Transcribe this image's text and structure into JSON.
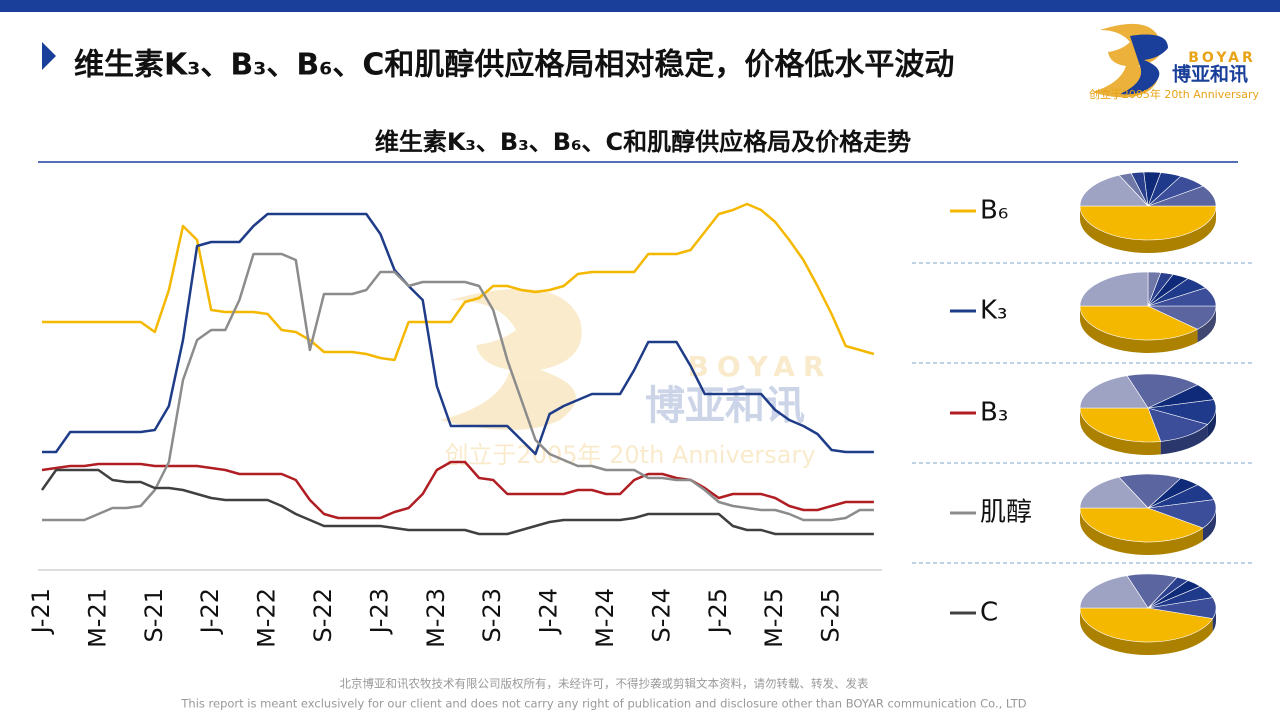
{
  "header": {
    "title": "维生素K₃、B₃、B₆、C和肌醇供应格局相对稳定，价格低水平波动"
  },
  "logo": {
    "brand": "BOYAR",
    "name": "博亚和讯",
    "tagline": "创立于2005年 20th Anniversary"
  },
  "chart_data": [
    {
      "type": "line",
      "title": "维生素K₃、B₃、B₆、C和肌醇供应格局及价格走势",
      "categories": [
        "J-21",
        null,
        null,
        null,
        "M-21",
        null,
        null,
        null,
        "S-21",
        null,
        null,
        null,
        "J-22",
        null,
        null,
        null,
        "M-22",
        null,
        null,
        null,
        "S-22",
        null,
        null,
        null,
        "J-23",
        null,
        null,
        null,
        "M-23",
        null,
        null,
        null,
        "S-23",
        null,
        null,
        null,
        "J-24",
        null,
        null,
        null,
        "M-24",
        null,
        null,
        null,
        "S-24",
        null,
        null,
        null,
        "J-25",
        null,
        null,
        null,
        "M-25",
        null,
        null,
        null,
        "S-25",
        null,
        null,
        null
      ],
      "ylim": [
        0,
        100
      ],
      "series": [
        {
          "name": "B₆",
          "color": "#f5b800",
          "values": [
            62,
            62,
            62,
            62,
            62,
            62,
            62,
            62,
            59.5,
            70,
            86,
            82.5,
            65,
            64.5,
            64.5,
            64.5,
            64,
            60,
            59.5,
            57.5,
            54.5,
            54.5,
            54.5,
            54,
            53,
            52.5,
            62,
            62,
            62,
            62,
            67,
            68,
            71,
            71,
            70,
            69.5,
            70,
            71,
            74,
            74.5,
            74.5,
            74.5,
            74.5,
            79,
            79,
            79,
            80,
            84.5,
            89,
            90,
            91.5,
            90,
            87,
            82.5,
            77.5,
            71,
            64,
            56,
            55,
            54
          ]
        },
        {
          "name": "K₃",
          "color": "#1f3c88",
          "values": [
            29.5,
            29.5,
            34.5,
            34.5,
            34.5,
            34.5,
            34.5,
            34.5,
            35,
            41,
            57.5,
            81,
            82,
            82,
            82,
            86,
            89,
            89,
            89,
            89,
            89,
            89,
            89,
            89,
            84,
            75,
            71,
            67.5,
            46,
            36,
            36,
            36,
            36,
            36,
            32.5,
            29,
            39,
            41,
            42.5,
            44,
            44,
            44,
            50,
            57,
            57,
            57,
            51,
            44,
            44,
            44,
            44,
            44,
            40,
            37.5,
            36,
            34,
            30,
            29.5,
            29.5,
            29.5
          ]
        },
        {
          "name": "B₃",
          "color": "#b01e23",
          "values": [
            25,
            25.5,
            26,
            26,
            26.5,
            26.5,
            26.5,
            26.5,
            26,
            26,
            26,
            26,
            25.5,
            25,
            24,
            24,
            24,
            24,
            22.5,
            17.5,
            14,
            13,
            13,
            13,
            13,
            14.5,
            15.5,
            19,
            25,
            27,
            27,
            23,
            22.5,
            19,
            19,
            19,
            19,
            19,
            20,
            20,
            19,
            19,
            22.5,
            24,
            24,
            23,
            22.5,
            20.5,
            18,
            19,
            19,
            19,
            18,
            16,
            15,
            15,
            16,
            17,
            17,
            17
          ]
        },
        {
          "name": "肌醇",
          "color": "#8c8c8c",
          "values": [
            12.5,
            12.5,
            12.5,
            12.5,
            14,
            15.5,
            15.5,
            16,
            20,
            27,
            47.5,
            57.5,
            60,
            60,
            67.5,
            79,
            79,
            79,
            77.5,
            55,
            69,
            69,
            69,
            70,
            74.5,
            74.5,
            71,
            72,
            72,
            72,
            72,
            71,
            65,
            52.5,
            42.5,
            32.5,
            29,
            27.5,
            26,
            26,
            25,
            25,
            25,
            23,
            23,
            22.5,
            22.5,
            20,
            17,
            16,
            15.5,
            15,
            15,
            14,
            12.5,
            12.5,
            12.5,
            13,
            15,
            15
          ]
        },
        {
          "name": "C",
          "color": "#404040",
          "values": [
            20,
            25,
            25,
            25,
            25,
            22.5,
            22,
            22,
            20.5,
            20.5,
            20,
            19,
            18,
            17.5,
            17.5,
            17.5,
            17.5,
            16,
            14,
            12.5,
            11,
            11,
            11,
            11,
            11,
            10.5,
            10,
            10,
            10,
            10,
            10,
            9,
            9,
            9,
            10,
            11,
            12,
            12.5,
            12.5,
            12.5,
            12.5,
            12.5,
            13,
            14,
            14,
            14,
            14,
            14,
            14,
            11,
            10,
            10,
            9,
            9,
            9,
            9,
            9,
            9,
            9,
            9
          ]
        }
      ]
    },
    {
      "type": "pie",
      "values": [
        50,
        10,
        7,
        5,
        4,
        3,
        3,
        18
      ],
      "colors": [
        "#f5b800",
        "#5b65a0",
        "#3c4e9a",
        "#1f3a8a",
        "#0f2a78",
        "#2b3f8f",
        "#7078a8",
        "#9ea3c4"
      ]
    },
    {
      "type": "pie",
      "values": [
        38,
        12,
        9,
        6,
        4,
        3,
        3,
        25
      ],
      "colors": [
        "#f5b800",
        "#5b65a0",
        "#3c4e9a",
        "#1f3a8a",
        "#0f2a78",
        "#2b3f8f",
        "#7078a8",
        "#9ea3c4"
      ]
    },
    {
      "type": "pie",
      "values": [
        28,
        14,
        12,
        8,
        18,
        20
      ],
      "colors": [
        "#f5b800",
        "#3c4e9a",
        "#1f3a8a",
        "#0f2a78",
        "#5b65a0",
        "#9ea3c4"
      ]
    },
    {
      "type": "pie",
      "values": [
        40,
        14,
        8,
        5,
        15,
        18
      ],
      "colors": [
        "#f5b800",
        "#3c4e9a",
        "#1f3a8a",
        "#0f2a78",
        "#5b65a0",
        "#9ea3c4"
      ]
    },
    {
      "type": "pie",
      "values": [
        45,
        10,
        6,
        4,
        3,
        12,
        20
      ],
      "colors": [
        "#f5b800",
        "#3c4e9a",
        "#1f3a8a",
        "#0f2a78",
        "#2b3f8f",
        "#5b65a0",
        "#9ea3c4"
      ]
    }
  ],
  "footer": {
    "line1": "北京博亚和讯农牧技术有限公司版权所有，未经许可，不得抄袭或剪辑文本资料，请勿转载、转发、发表",
    "line2": "This report is meant exclusively for our client and does not carry any right of publication and disclosure other than BOYAR communication Co., LTD"
  }
}
